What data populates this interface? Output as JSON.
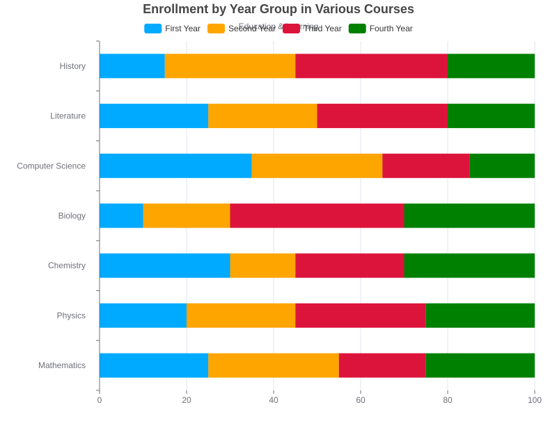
{
  "chart_data": {
    "type": "bar",
    "orientation": "horizontal",
    "stacked": true,
    "title": "Enrollment by Year Group in Various Courses",
    "subtitle": "Education & Learning",
    "categories": [
      "Mathematics",
      "Physics",
      "Chemistry",
      "Biology",
      "Computer Science",
      "Literature",
      "History"
    ],
    "series": [
      {
        "name": "First Year",
        "color": "#00AAFF",
        "values": [
          25,
          20,
          30,
          10,
          35,
          25,
          15
        ]
      },
      {
        "name": "Second Year",
        "color": "#FFA500",
        "values": [
          30,
          25,
          15,
          20,
          30,
          25,
          30
        ]
      },
      {
        "name": "Third Year",
        "color": "#DC143C",
        "values": [
          20,
          30,
          25,
          40,
          20,
          30,
          35
        ]
      },
      {
        "name": "Fourth Year",
        "color": "#008000",
        "values": [
          25,
          25,
          30,
          30,
          15,
          20,
          20
        ]
      }
    ],
    "xlim": [
      0,
      100
    ],
    "xticks": [
      "0",
      "20",
      "40",
      "60",
      "80",
      "100"
    ],
    "xlabel": "",
    "ylabel": "",
    "grid": "vertical",
    "legend_position": "top"
  }
}
